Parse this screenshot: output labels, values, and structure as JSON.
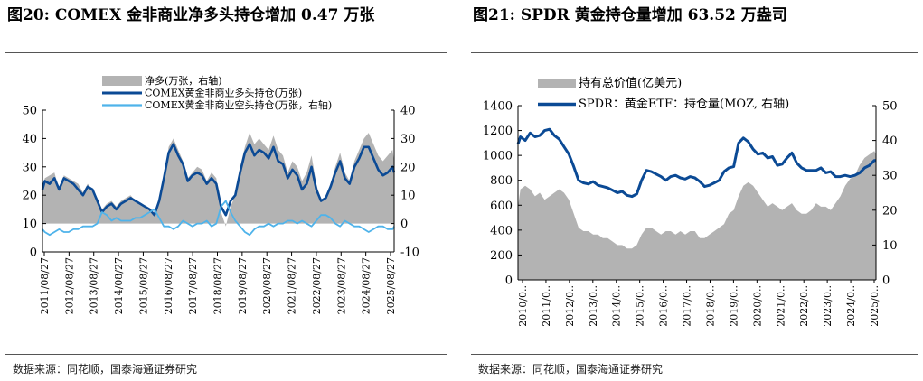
{
  "charts": [
    {
      "id": "c1",
      "title": "图20:  COMEX 金非商业净多头持仓增加 0.47 万张",
      "source": "数据来源：同花顺，国泰海通证券研究",
      "colors": {
        "area": "#b3b3b3",
        "long": "#0b4a95",
        "short": "#4fb3ea"
      }
    },
    {
      "id": "c2",
      "title": "图21:  SPDR 黄金持仓量增加 63.52 万盎司",
      "source": "数据来源：同花顺，国泰海通证券研究",
      "colors": {
        "area": "#b3b3b3",
        "line": "#0b4a95"
      }
    }
  ],
  "chart_data": [
    {
      "type": "line",
      "title": "COMEX 金非商业净多头持仓增加 0.47 万张",
      "x_tick_labels": [
        "2011/08/27",
        "2012/08/27",
        "2013/08/27",
        "2014/08/27",
        "2015/08/27",
        "2016/08/27",
        "2017/08/27",
        "2018/08/27",
        "2019/08/27",
        "2020/08/27",
        "2021/08/27",
        "2022/08/27",
        "2023/08/27",
        "2024/08/27",
        "2025/08/27"
      ],
      "x": [
        2010.9,
        2011.0,
        2011.2,
        2011.4,
        2011.6,
        2011.8,
        2012.0,
        2012.2,
        2012.4,
        2012.6,
        2012.8,
        2013.0,
        2013.2,
        2013.4,
        2013.6,
        2013.8,
        2014.0,
        2014.2,
        2014.4,
        2014.6,
        2014.8,
        2015.0,
        2015.2,
        2015.4,
        2015.6,
        2015.8,
        2016.0,
        2016.2,
        2016.4,
        2016.6,
        2016.8,
        2017.0,
        2017.2,
        2017.4,
        2017.6,
        2017.8,
        2018.0,
        2018.2,
        2018.4,
        2018.6,
        2018.8,
        2019.0,
        2019.2,
        2019.4,
        2019.6,
        2019.8,
        2020.0,
        2020.2,
        2020.4,
        2020.6,
        2020.8,
        2021.0,
        2021.2,
        2021.4,
        2021.6,
        2021.8,
        2022.0,
        2022.2,
        2022.4,
        2022.6,
        2022.8,
        2023.0,
        2023.2,
        2023.4,
        2023.6,
        2023.8,
        2024.0,
        2024.2,
        2024.4,
        2024.6,
        2024.8,
        2025.0,
        2025.2,
        2025.4,
        2025.6,
        2025.67
      ],
      "ylim_left": [
        0,
        50
      ],
      "ylim_right": [
        -10,
        40
      ],
      "y_ticks_left": [
        "0",
        "10",
        "20",
        "30",
        "40",
        "50"
      ],
      "y_ticks_right": [
        "-10",
        "0",
        "10",
        "20",
        "30",
        "40"
      ],
      "series": [
        {
          "name": "净多(万张，右轴)",
          "axis": "right",
          "kind": "area",
          "values": [
            13,
            16,
            17,
            18,
            12,
            17,
            16,
            15,
            14,
            11,
            14,
            12,
            9,
            5,
            7,
            8,
            6,
            8,
            9,
            10,
            8,
            7,
            6,
            5,
            3,
            8,
            16,
            27,
            30,
            26,
            22,
            16,
            18,
            20,
            19,
            15,
            18,
            16,
            4,
            -1,
            6,
            10,
            20,
            27,
            32,
            28,
            30,
            28,
            26,
            31,
            26,
            24,
            18,
            22,
            20,
            15,
            18,
            24,
            14,
            8,
            9,
            14,
            20,
            25,
            18,
            15,
            22,
            26,
            30,
            32,
            28,
            24,
            22,
            24,
            26,
            22
          ]
        },
        {
          "name": "COMEX黄金非商业多头持仓(万张)",
          "axis": "left",
          "kind": "line",
          "values": [
            22,
            25,
            24,
            26,
            22,
            26,
            25,
            24,
            22,
            20,
            23,
            22,
            18,
            14,
            16,
            17,
            15,
            17,
            18,
            19,
            18,
            17,
            16,
            15,
            13,
            18,
            26,
            35,
            38,
            34,
            31,
            25,
            27,
            28,
            27,
            24,
            26,
            24,
            16,
            13,
            18,
            20,
            28,
            35,
            38,
            34,
            36,
            35,
            33,
            37,
            32,
            31,
            26,
            29,
            27,
            22,
            24,
            30,
            22,
            18,
            19,
            23,
            28,
            32,
            26,
            24,
            30,
            33,
            37,
            37,
            33,
            29,
            27,
            28,
            30,
            28
          ]
        },
        {
          "name": "COMEX黄金非商业空头持仓(万张，右轴)",
          "axis": "right",
          "kind": "line",
          "values": [
            -2,
            -3,
            -4,
            -3,
            -2,
            -3,
            -3,
            -2,
            -2,
            -1,
            -1,
            -1,
            0,
            4,
            3,
            1,
            2,
            1,
            1,
            1,
            2,
            2,
            3,
            4,
            5,
            2,
            -1,
            -1,
            -2,
            -1,
            1,
            0,
            -1,
            0,
            0,
            1,
            -1,
            0,
            6,
            8,
            4,
            1,
            -1,
            -3,
            -4,
            -2,
            -1,
            -1,
            0,
            -1,
            0,
            0,
            1,
            1,
            0,
            1,
            0,
            -1,
            1,
            3,
            3,
            2,
            0,
            -1,
            1,
            0,
            -1,
            -1,
            -2,
            -3,
            -2,
            -1,
            -1,
            -2,
            -2,
            -1
          ]
        }
      ]
    },
    {
      "type": "line",
      "title": "SPDR 黄金持仓量增加 63.52 万盎司",
      "x_tick_labels": [
        "2010/0..",
        "2011/0..",
        "2012/0..",
        "2013/0..",
        "2014/0..",
        "2015/0..",
        "2016/0..",
        "2017/0..",
        "2018/0..",
        "2019/0..",
        "2020/0..",
        "2021/0..",
        "2022/0..",
        "2023/0..",
        "2024/0..",
        "2025/0.."
      ],
      "x": [
        2010.9,
        2011.0,
        2011.2,
        2011.4,
        2011.6,
        2011.8,
        2012.0,
        2012.2,
        2012.4,
        2012.6,
        2012.8,
        2013.0,
        2013.2,
        2013.4,
        2013.6,
        2013.8,
        2014.0,
        2014.2,
        2014.4,
        2014.6,
        2014.8,
        2015.0,
        2015.2,
        2015.4,
        2015.6,
        2015.8,
        2016.0,
        2016.2,
        2016.4,
        2016.6,
        2016.8,
        2017.0,
        2017.2,
        2017.4,
        2017.6,
        2017.8,
        2018.0,
        2018.2,
        2018.4,
        2018.6,
        2018.8,
        2019.0,
        2019.2,
        2019.4,
        2019.6,
        2019.8,
        2020.0,
        2020.2,
        2020.4,
        2020.6,
        2020.8,
        2021.0,
        2021.2,
        2021.4,
        2021.6,
        2021.8,
        2022.0,
        2022.2,
        2022.4,
        2022.6,
        2022.8,
        2023.0,
        2023.2,
        2023.4,
        2023.6,
        2023.8,
        2024.0,
        2024.2,
        2024.4,
        2024.6,
        2024.8,
        2025.0,
        2025.2,
        2025.4,
        2025.6,
        2025.67
      ],
      "ylim_left": [
        0,
        1400
      ],
      "ylim_right": [
        0,
        50
      ],
      "y_ticks_left": [
        "0",
        "200",
        "400",
        "600",
        "800",
        "1000",
        "1200",
        "1400"
      ],
      "y_ticks_right": [
        "0",
        "10",
        "20",
        "30",
        "40",
        "50"
      ],
      "series": [
        {
          "name": "持有总价值(亿美元)",
          "axis": "right",
          "kind": "area",
          "values": [
            21,
            26,
            27,
            26,
            24,
            25,
            23,
            24,
            25,
            26,
            25,
            23,
            19,
            15,
            14,
            14,
            13,
            13,
            12,
            12,
            11,
            10,
            10,
            9,
            9,
            10,
            13,
            15,
            15,
            14,
            13,
            14,
            14,
            13,
            14,
            13,
            14,
            14,
            12,
            12,
            13,
            14,
            15,
            16,
            19,
            20,
            24,
            27,
            28,
            27,
            25,
            23,
            21,
            22,
            21,
            20,
            21,
            22,
            20,
            19,
            19,
            20,
            22,
            21,
            21,
            20,
            22,
            24,
            27,
            29,
            30,
            33,
            35,
            36,
            37,
            36
          ]
        },
        {
          "name": "SPDR：黄金ETF：持仓量(MOZ, 右轴)",
          "axis": "left",
          "kind": "line",
          "values": [
            1090,
            1150,
            1120,
            1180,
            1150,
            1160,
            1200,
            1210,
            1160,
            1130,
            1070,
            1010,
            910,
            800,
            780,
            770,
            790,
            760,
            750,
            740,
            720,
            700,
            710,
            680,
            670,
            690,
            800,
            880,
            870,
            850,
            830,
            800,
            830,
            840,
            820,
            810,
            830,
            820,
            790,
            750,
            760,
            780,
            800,
            870,
            900,
            910,
            1100,
            1140,
            1110,
            1050,
            1010,
            1020,
            980,
            990,
            920,
            930,
            980,
            1020,
            940,
            900,
            880,
            880,
            880,
            900,
            860,
            870,
            830,
            830,
            840,
            830,
            840,
            860,
            900,
            920,
            960,
            960
          ]
        }
      ]
    }
  ]
}
